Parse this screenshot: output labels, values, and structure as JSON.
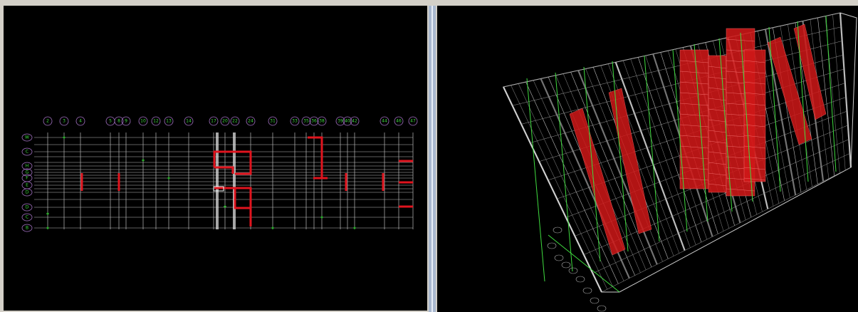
{
  "plan_view": {
    "column_labels": [
      "2",
      "3",
      "4",
      "5",
      "8",
      "9",
      "10",
      "12",
      "13",
      "14",
      "17",
      "20",
      "22",
      "24",
      "31",
      "33",
      "35",
      "36",
      "38",
      "39",
      "40",
      "42",
      "44",
      "46",
      "47"
    ],
    "row_labels": [
      "W",
      "C",
      "H",
      "G",
      "F",
      "E",
      "D",
      "D",
      "C",
      "B"
    ]
  }
}
